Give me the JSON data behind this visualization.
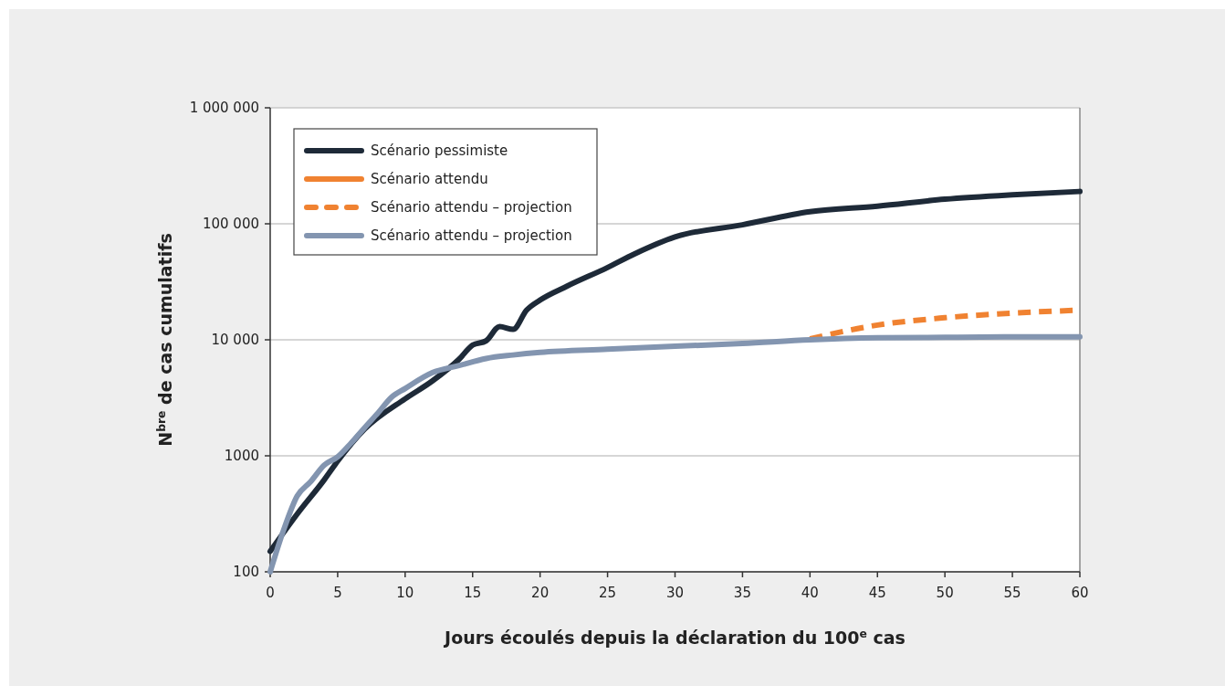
{
  "chart_data": {
    "type": "line",
    "xlabel": "Jours écoulés depuis la déclaration du 100$^{e}$ cas",
    "ylabel": "N$^{bre}$ de cas cumulatifs",
    "log": "y",
    "grid": "y",
    "legend": "top left",
    "marker": "none",
    "xlim": [
      0,
      60
    ],
    "xticks": [
      0,
      5,
      10,
      15,
      20,
      25,
      30,
      35,
      40,
      45,
      50,
      55,
      60
    ],
    "ylim": [
      100,
      1000000
    ],
    "yticks": [
      100,
      1000,
      {
        "value": 10000,
        "label": "10 000"
      },
      {
        "value": 100000,
        "label": "100 000"
      },
      {
        "value": 1000000,
        "label": "1 000 000"
      }
    ],
    "series": [
      {
        "name": "Scénario pessimiste",
        "color": "#1e2a38",
        "line_style": "solid",
        "x": [
          0,
          2,
          4,
          5,
          7,
          10,
          12,
          14,
          15,
          16,
          17,
          18,
          19,
          20,
          22,
          25,
          27,
          30,
          35,
          40,
          45,
          50,
          55,
          60
        ],
        "values": [
          150,
          315,
          620,
          900,
          1700,
          3100,
          4400,
          6800,
          9000,
          9800,
          13000,
          12300,
          18000,
          22000,
          29000,
          42000,
          55000,
          77000,
          98000,
          127000,
          142000,
          163000,
          178000,
          190000
        ]
      },
      {
        "name": "Scénario attendu",
        "color": "#f08231",
        "line_style": "solid"
      },
      {
        "name": "Scénario attendu – projection",
        "color": "#f08231",
        "line_style": "dashed",
        "x": [
          40,
          45,
          50,
          55,
          60
        ],
        "values": [
          10200,
          13400,
          15500,
          17000,
          18000
        ]
      },
      {
        "name": "Scénario attendu – projection",
        "color": "#8395b0",
        "line_style": "solid",
        "x": [
          0,
          1,
          2,
          3,
          4,
          5,
          6,
          7,
          8,
          9,
          10,
          12,
          14,
          16,
          18,
          20,
          25,
          30,
          35,
          40,
          45,
          50,
          55,
          60
        ],
        "values": [
          100,
          230,
          450,
          600,
          830,
          980,
          1290,
          1750,
          2350,
          3200,
          3800,
          5200,
          6000,
          6900,
          7400,
          7800,
          8300,
          8800,
          9300,
          10000,
          10400,
          10500,
          10600,
          10600
        ]
      }
    ]
  }
}
